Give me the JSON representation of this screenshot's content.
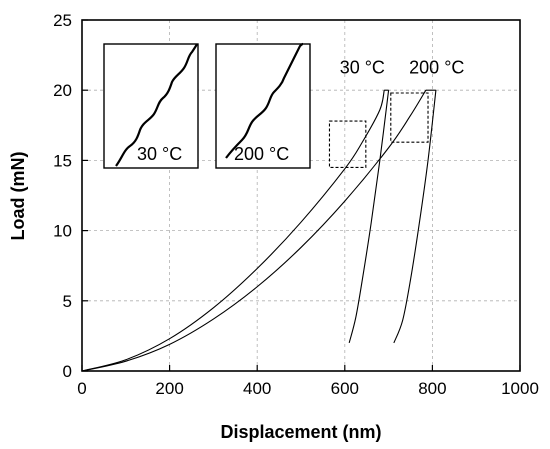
{
  "chart_data": {
    "type": "line",
    "title": "",
    "xlabel": "Displacement (nm)",
    "ylabel": "Load (mN)",
    "xlim": [
      0,
      1000
    ],
    "ylim": [
      0,
      25
    ],
    "xticks": [
      0,
      200,
      400,
      600,
      800,
      1000
    ],
    "yticks": [
      0,
      5,
      10,
      15,
      20,
      25
    ],
    "grid": true,
    "series": [
      {
        "name": "30 °C",
        "loading": [
          [
            0,
            0
          ],
          [
            100,
            0.8
          ],
          [
            200,
            2.3
          ],
          [
            300,
            4.5
          ],
          [
            400,
            7.3
          ],
          [
            500,
            10.6
          ],
          [
            600,
            14.4
          ],
          [
            640,
            16.3
          ],
          [
            680,
            18.6
          ],
          [
            690,
            20.0
          ]
        ],
        "hold": [
          [
            690,
            20.0
          ],
          [
            700,
            20.0
          ]
        ],
        "unloading": [
          [
            700,
            20.0
          ],
          [
            680,
            15.0
          ],
          [
            660,
            10.5
          ],
          [
            640,
            6.5
          ],
          [
            625,
            3.8
          ],
          [
            610,
            2.0
          ]
        ]
      },
      {
        "name": "200 °C",
        "loading": [
          [
            0,
            0
          ],
          [
            100,
            0.7
          ],
          [
            200,
            1.9
          ],
          [
            300,
            3.7
          ],
          [
            400,
            6.0
          ],
          [
            500,
            8.8
          ],
          [
            600,
            12.1
          ],
          [
            700,
            15.9
          ],
          [
            750,
            18.2
          ],
          [
            785,
            20.0
          ]
        ],
        "hold": [
          [
            785,
            20.0
          ],
          [
            808,
            20.0
          ]
        ],
        "unloading": [
          [
            808,
            20.0
          ],
          [
            790,
            15.0
          ],
          [
            770,
            10.5
          ],
          [
            750,
            6.5
          ],
          [
            732,
            3.6
          ],
          [
            712,
            2.0
          ]
        ]
      }
    ],
    "annotations": [
      {
        "text": "30 °C",
        "x": 640,
        "y": 21.2
      },
      {
        "text": "200 °C",
        "x": 810,
        "y": 21.2
      }
    ],
    "highlight_boxes": [
      {
        "x0": 565,
        "x1": 648,
        "y0": 14.5,
        "y1": 17.8
      },
      {
        "x0": 705,
        "x1": 790,
        "y0": 16.3,
        "y1": 19.8
      }
    ],
    "insets": [
      {
        "label": "30 °C"
      },
      {
        "label": "200 °C"
      }
    ]
  }
}
